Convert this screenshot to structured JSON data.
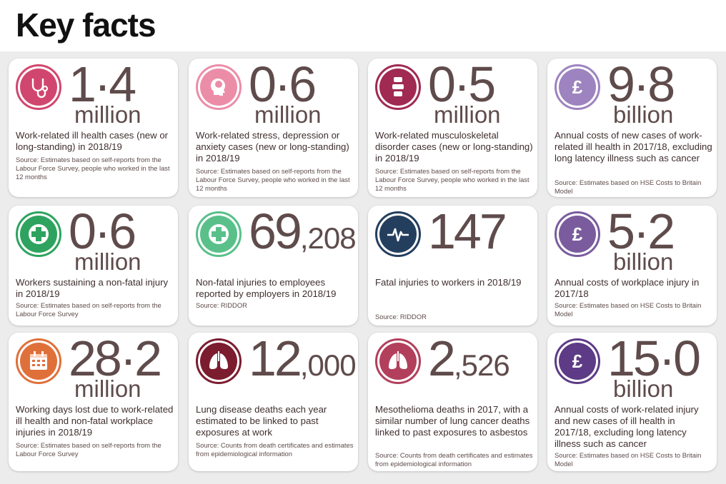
{
  "title": "Key facts",
  "colors": {
    "pink": "#d1466f",
    "lightpink": "#ec8da8",
    "maroon": "#a02a52",
    "lavender": "#9d83bf",
    "green": "#2ea35f",
    "lightgreen": "#59c08a",
    "navy": "#243f5e",
    "purple": "#7a5c9e",
    "orange": "#e0703a",
    "darkred": "#7b1d2f",
    "rose": "#b2405c",
    "darkpurple": "#5d3b86"
  },
  "cards": [
    {
      "icon": "stethoscope-icon",
      "value": "1·4",
      "suffix": "",
      "unit": "million",
      "desc": "Work-related ill health cases (new or long-standing) in 2018/19",
      "source": "Source: Estimates based on self-reports from the Labour Force Survey, people who worked in the last 12 months"
    },
    {
      "icon": "head-brain-icon",
      "value": "0·6",
      "suffix": "",
      "unit": "million",
      "desc": "Work-related stress, depression or anxiety cases (new or long-standing) in 2018/19",
      "source": "Source: Estimates based on self-reports from the Labour Force Survey, people who worked in the last 12 months"
    },
    {
      "icon": "spine-icon",
      "value": "0·5",
      "suffix": "",
      "unit": "million",
      "desc": "Work-related musculoskeletal disorder cases (new or long-standing) in 2018/19",
      "source": "Source: Estimates based on self-reports from the Labour Force Survey, people who worked in the last 12 months"
    },
    {
      "icon": "pound-icon",
      "value": "9·8",
      "suffix": "",
      "unit": "billion",
      "desc": "Annual costs of new cases of work-related ill health in 2017/18, excluding long latency illness such as cancer",
      "source": "Source: Estimates based on HSE Costs to Britain Model"
    },
    {
      "icon": "first-aid-cross-icon",
      "value": "0·6",
      "suffix": "",
      "unit": "million",
      "desc": "Workers sustaining a non-fatal injury in 2018/19",
      "source": "Source: Estimates based on self-reports from the Labour Force Survey"
    },
    {
      "icon": "first-aid-cross-icon",
      "value": "69",
      "suffix": ",208",
      "unit": "",
      "desc": "Non-fatal injuries to employees reported by employers in 2018/19",
      "source": "Source: RIDDOR"
    },
    {
      "icon": "heartbeat-icon",
      "value": "147",
      "suffix": "",
      "unit": "",
      "desc": "Fatal injuries to workers in 2018/19",
      "source": "Source: RIDDOR"
    },
    {
      "icon": "pound-icon",
      "value": "5·2",
      "suffix": "",
      "unit": "billion",
      "desc": "Annual costs of workplace injury in 2017/18",
      "source": "Source: Estimates based on HSE Costs to Britain Model"
    },
    {
      "icon": "calendar-icon",
      "value": "28·2",
      "suffix": "",
      "unit": "million",
      "desc": "Working days lost due to work-related ill health and non-fatal workplace injuries in 2018/19",
      "source": "Source: Estimates based on self-reports from the Labour Force Survey"
    },
    {
      "icon": "lungs-icon",
      "value": "12",
      "suffix": ",000",
      "unit": "",
      "desc": "Lung disease deaths each year estimated to be linked to past exposures at work",
      "source": "Source: Counts from death certificates and estimates from epidemiological information"
    },
    {
      "icon": "lungs-icon",
      "value": "2",
      "suffix": ",526",
      "unit": "",
      "desc": "Mesothelioma deaths in 2017, with a similar number of lung cancer deaths linked to past exposures to asbestos",
      "source": "Source: Counts from death certificates and estimates from epidemiological information"
    },
    {
      "icon": "pound-icon",
      "value": "15·0",
      "suffix": "",
      "unit": "billion",
      "desc": "Annual costs of work-related injury and new cases of ill health in 2017/18, excluding long latency illness such as cancer",
      "source": "Source: Estimates based on HSE Costs to Britain Model"
    }
  ]
}
